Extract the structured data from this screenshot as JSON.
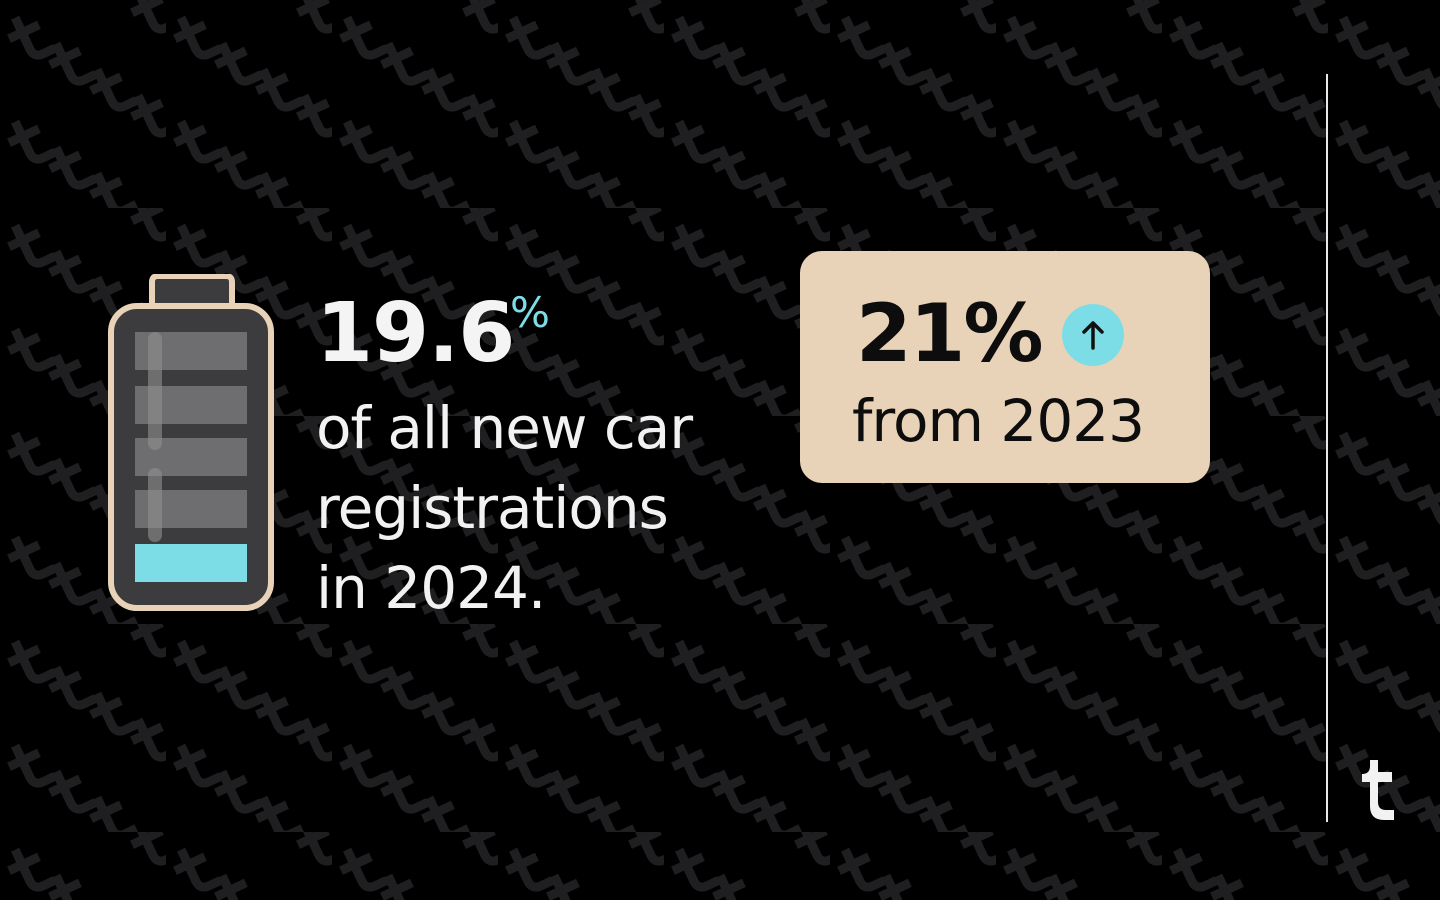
{
  "stat": {
    "value": "19.6",
    "unit": "%",
    "description": "of all new car registrations in 2024.",
    "battery_level_fraction": 0.2
  },
  "change": {
    "value": "21%",
    "direction_icon": "arrow-up-icon",
    "description": "from 2023"
  },
  "colors": {
    "background": "#000000",
    "accent": "#7ddde6",
    "card": "#e8d3b8",
    "battery_outline": "#e8d3b8",
    "battery_body": "#3c3c3f"
  },
  "brand": {
    "logo_icon": "letter-t-logo-icon"
  }
}
